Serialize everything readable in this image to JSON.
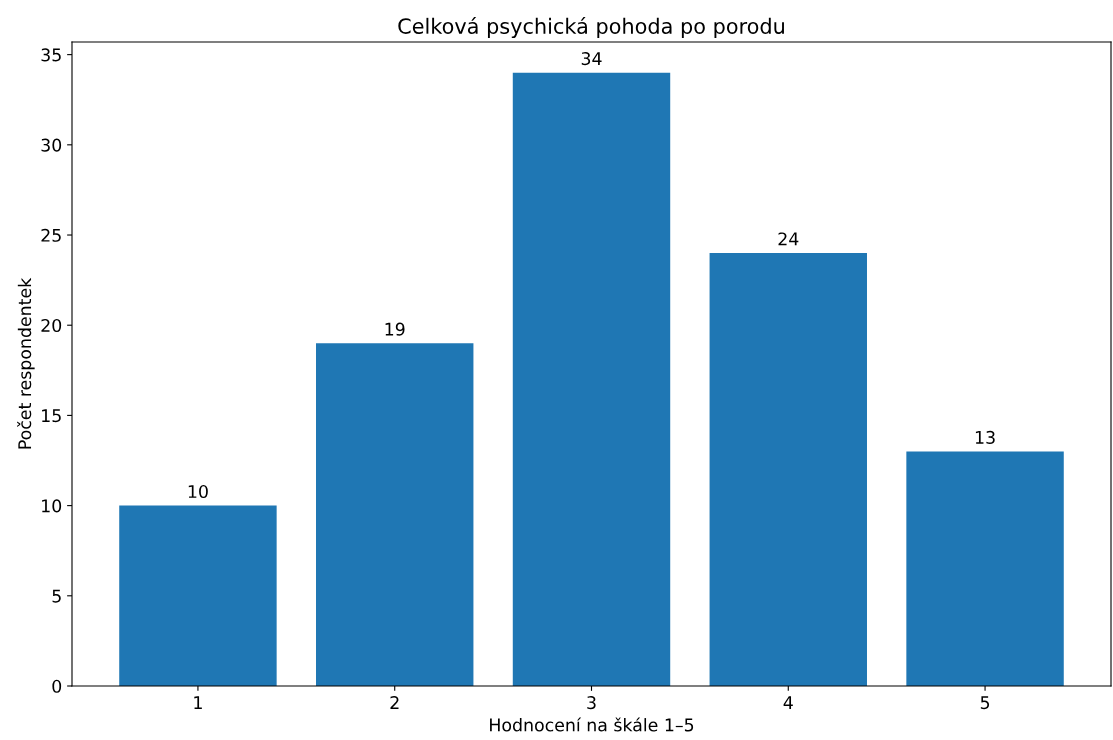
{
  "chart_data": {
    "type": "bar",
    "title": "Celková psychická pohoda po porodu",
    "xlabel": "Hodnocení na škále 1–5",
    "ylabel": "Počet respondentek",
    "categories": [
      "1",
      "2",
      "3",
      "4",
      "5"
    ],
    "values": [
      10,
      19,
      34,
      24,
      13
    ],
    "color": "#1f77b4",
    "ylim": [
      0,
      35.7
    ],
    "yticks": [
      0,
      5,
      10,
      15,
      20,
      25,
      30,
      35
    ],
    "data_labels": true,
    "grid": false,
    "legend": false
  }
}
